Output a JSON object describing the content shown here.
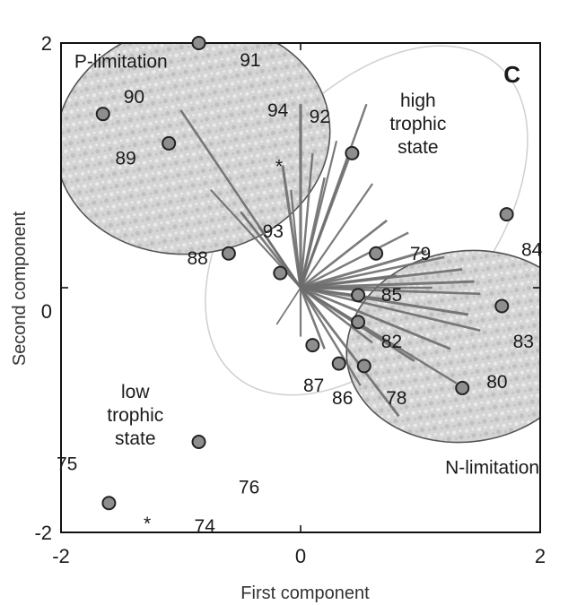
{
  "chart_data": {
    "type": "scatter",
    "title": "",
    "panel_letter": "C",
    "xlabel": "First component",
    "ylabel": "Second component",
    "xlim": [
      -2,
      2
    ],
    "ylim": [
      -2,
      2
    ],
    "x_ticks": [
      {
        "value": -2,
        "label": "-2"
      },
      {
        "value": 0,
        "label": "0"
      },
      {
        "value": 2,
        "label": "2"
      }
    ],
    "y_ticks": [
      {
        "value": -2,
        "label": "-2"
      },
      {
        "value": 0,
        "label": "0"
      },
      {
        "value": 2,
        "label": "2"
      }
    ],
    "grid": false,
    "points": [
      {
        "x": -0.85,
        "y": 2.0,
        "label": "91",
        "lx": -0.42,
        "ly": 1.86
      },
      {
        "x": -1.65,
        "y": 1.42,
        "label": "90",
        "lx": -1.39,
        "ly": 1.56
      },
      {
        "x": -1.1,
        "y": 1.18,
        "label": "89",
        "lx": -1.46,
        "ly": 1.06
      },
      {
        "x": 0.43,
        "y": 1.1,
        "label": "92",
        "lx": 0.16,
        "ly": 1.4
      },
      {
        "x": -0.6,
        "y": 0.28,
        "label": "88",
        "lx": -0.86,
        "ly": 0.24
      },
      {
        "x": -0.17,
        "y": 0.12,
        "label": "93",
        "lx": -0.23,
        "ly": 0.46
      },
      {
        "x": 0.63,
        "y": 0.28,
        "label": "79",
        "lx": 1.0,
        "ly": 0.28
      },
      {
        "x": 1.72,
        "y": 0.6,
        "label": "84",
        "lx": 1.93,
        "ly": 0.31
      },
      {
        "x": 0.48,
        "y": -0.06,
        "label": "85",
        "lx": 0.76,
        "ly": -0.06
      },
      {
        "x": 0.48,
        "y": -0.28,
        "label": "82",
        "lx": 0.76,
        "ly": -0.44
      },
      {
        "x": 1.68,
        "y": -0.15,
        "label": "83",
        "lx": 1.86,
        "ly": -0.44
      },
      {
        "x": 0.1,
        "y": -0.47,
        "label": "87",
        "lx": 0.11,
        "ly": -0.8
      },
      {
        "x": 0.32,
        "y": -0.62,
        "label": "86",
        "lx": 0.35,
        "ly": -0.9
      },
      {
        "x": 0.53,
        "y": -0.64,
        "label": "78",
        "lx": 0.8,
        "ly": -0.9
      },
      {
        "x": 1.35,
        "y": -0.82,
        "label": "80",
        "lx": 1.64,
        "ly": -0.77
      },
      {
        "x": -0.85,
        "y": -1.26,
        "label": "",
        "lx": 0,
        "ly": 0
      },
      {
        "x": -1.6,
        "y": -1.76,
        "label": "",
        "lx": 0,
        "ly": 0
      }
    ],
    "star_points": [
      {
        "x": -0.18,
        "y": 1.0
      },
      {
        "x": -1.28,
        "y": -1.92
      }
    ],
    "extra_labels": [
      {
        "text": "94",
        "x": -0.19,
        "y": 1.45
      },
      {
        "text": "75",
        "x": -1.95,
        "y": -1.44
      },
      {
        "text": "76",
        "x": -0.43,
        "y": -1.63
      },
      {
        "text": "74",
        "x": -0.8,
        "y": -1.95
      }
    ],
    "annotations": [
      {
        "lines": [
          "P-limitation"
        ],
        "x": -1.5,
        "y": 1.85,
        "anchor": "middle"
      },
      {
        "lines": [
          "high",
          "trophic",
          "state"
        ],
        "x": 0.98,
        "y": 1.34,
        "anchor": "middle"
      },
      {
        "lines": [
          "low",
          "trophic",
          "state"
        ],
        "x": -1.38,
        "y": -1.04,
        "anchor": "middle"
      },
      {
        "lines": [
          "N-limitation"
        ],
        "x": 1.6,
        "y": -1.47,
        "anchor": "middle"
      }
    ],
    "ellipses": [
      {
        "name": "P-limitation",
        "cx": -0.9,
        "cy": 1.22,
        "rx": 1.15,
        "ry": 0.94,
        "rot": -10,
        "style": "dark"
      },
      {
        "name": "N-limitation",
        "cx": 1.38,
        "cy": -0.48,
        "rx": 1.0,
        "ry": 0.78,
        "rot": -8,
        "style": "dark"
      },
      {
        "name": "high trophic state",
        "cx": 0.55,
        "cy": 0.55,
        "rx": 1.7,
        "ry": 1.0,
        "rot": -50,
        "style": "light"
      }
    ],
    "rays": [
      {
        "x": -1.0,
        "y": 1.45,
        "w": 2.6
      },
      {
        "x": -0.75,
        "y": 0.8,
        "w": 2.2
      },
      {
        "x": -0.5,
        "y": 0.62,
        "w": 2.8
      },
      {
        "x": -0.35,
        "y": 0.5,
        "w": 2.4
      },
      {
        "x": -0.15,
        "y": 1.0,
        "w": 3.0
      },
      {
        "x": -0.08,
        "y": 0.8,
        "w": 2.2
      },
      {
        "x": 0.0,
        "y": 1.5,
        "w": 3.2
      },
      {
        "x": 0.1,
        "y": 1.1,
        "w": 2.4
      },
      {
        "x": 0.2,
        "y": 0.9,
        "w": 2.6
      },
      {
        "x": 0.3,
        "y": 1.2,
        "w": 2.2
      },
      {
        "x": 0.4,
        "y": 1.05,
        "w": 2.8
      },
      {
        "x": 0.55,
        "y": 1.5,
        "w": 2.4
      },
      {
        "x": 0.6,
        "y": 0.85,
        "w": 2.2
      },
      {
        "x": 0.72,
        "y": 0.55,
        "w": 2.6
      },
      {
        "x": 0.9,
        "y": 0.45,
        "w": 2.4
      },
      {
        "x": 1.05,
        "y": 0.3,
        "w": 3.0
      },
      {
        "x": 1.2,
        "y": 0.25,
        "w": 2.6
      },
      {
        "x": 1.35,
        "y": 0.15,
        "w": 2.8
      },
      {
        "x": 1.45,
        "y": 0.05,
        "w": 3.0
      },
      {
        "x": 1.5,
        "y": -0.05,
        "w": 2.6
      },
      {
        "x": 1.4,
        "y": -0.22,
        "w": 3.0
      },
      {
        "x": 1.5,
        "y": -0.35,
        "w": 2.6
      },
      {
        "x": 1.25,
        "y": -0.5,
        "w": 2.8
      },
      {
        "x": 1.3,
        "y": -0.78,
        "w": 2.4
      },
      {
        "x": 0.95,
        "y": -0.6,
        "w": 3.0
      },
      {
        "x": 0.6,
        "y": -0.45,
        "w": 2.6
      },
      {
        "x": 0.82,
        "y": -1.05,
        "w": 2.8
      },
      {
        "x": 0.5,
        "y": -0.8,
        "w": 2.4
      },
      {
        "x": 0.2,
        "y": -0.5,
        "w": 2.6
      },
      {
        "x": 0.0,
        "y": -0.4,
        "w": 2.2
      },
      {
        "x": -0.2,
        "y": -0.3,
        "w": 1.8
      },
      {
        "x": 0.75,
        "y": -0.1,
        "w": 2.4
      },
      {
        "x": 1.1,
        "y": 0.0,
        "w": 2.2
      },
      {
        "x": 0.8,
        "y": 0.1,
        "w": 2.6
      }
    ],
    "colors": {
      "point_fill": "#8e8e8e",
      "point_stroke": "#222222",
      "ellipse_fill": "#cfcfcf",
      "ellipse_stroke": "#555555",
      "light_ellipse_stroke": "#cfcfcf",
      "ray": "#6d6d6d",
      "axis": "#111111"
    }
  }
}
